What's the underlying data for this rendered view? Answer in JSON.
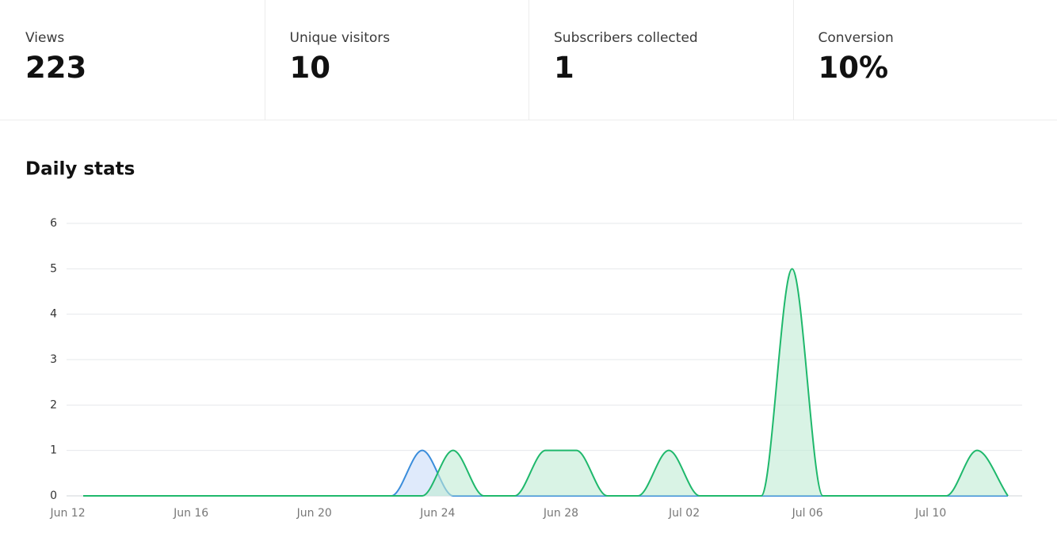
{
  "stats": [
    {
      "label": "Views",
      "value": 223
    },
    {
      "label": "Unique visitors",
      "value": 10
    },
    {
      "label": "Subscribers collected",
      "value": 1
    },
    {
      "label": "Conversion",
      "value": "10%"
    }
  ],
  "chart_data": {
    "type": "area",
    "title": "Daily stats",
    "categories": [
      "Jun 12",
      null,
      null,
      null,
      "Jun 16",
      null,
      null,
      null,
      "Jun 20",
      null,
      null,
      null,
      "Jun 24",
      null,
      null,
      null,
      "Jun 28",
      null,
      null,
      null,
      "Jul 02",
      null,
      null,
      null,
      "Jul 06",
      null,
      null,
      null,
      "Jul 10",
      null,
      null
    ],
    "series": [
      {
        "color": "#3a8ddb",
        "fill": "#c9dcf9",
        "values": [
          0,
          0,
          0,
          0,
          0,
          0,
          0,
          0,
          0,
          0,
          0,
          1,
          0,
          0,
          0,
          0,
          0,
          0,
          0,
          0,
          0,
          0,
          0,
          0,
          0,
          0,
          0,
          0,
          0,
          0,
          0
        ]
      },
      {
        "color": "#1fb86c",
        "fill": "#bfebd3",
        "values": [
          0,
          0,
          0,
          0,
          0,
          0,
          0,
          0,
          0,
          0,
          0,
          0,
          1,
          0,
          0,
          1,
          1,
          0,
          0,
          1,
          0,
          0,
          0,
          5,
          0,
          0,
          0,
          0,
          0,
          1,
          0
        ]
      }
    ],
    "ylim": [
      0,
      6
    ],
    "yticks": [
      0,
      1,
      2,
      3,
      4,
      5,
      6
    ],
    "grid": true
  }
}
